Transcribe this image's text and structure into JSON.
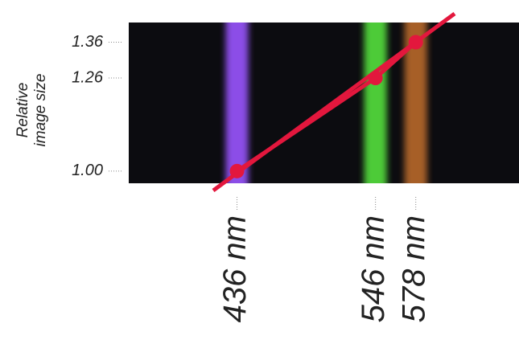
{
  "chart_data": {
    "type": "line",
    "ylabel": "Relative image size",
    "x": [
      436,
      546,
      578
    ],
    "series": [
      {
        "values": [
          1.0,
          1.26,
          1.36
        ],
        "color": "#e3173d"
      }
    ],
    "colors": [
      "#9a55ff",
      "#55e03c",
      "#b8692c"
    ],
    "xlim": [
      350,
      660
    ],
    "xticks": [
      {
        "value": 436,
        "label": "436 nm"
      },
      {
        "value": 546,
        "label": "546 nm"
      },
      {
        "value": 578,
        "label": "578 nm"
      }
    ],
    "ylim": [
      0.966,
      1.415
    ],
    "yticks": [
      {
        "value": 1,
        "label": "1.00"
      },
      1.26,
      1.36
    ]
  }
}
